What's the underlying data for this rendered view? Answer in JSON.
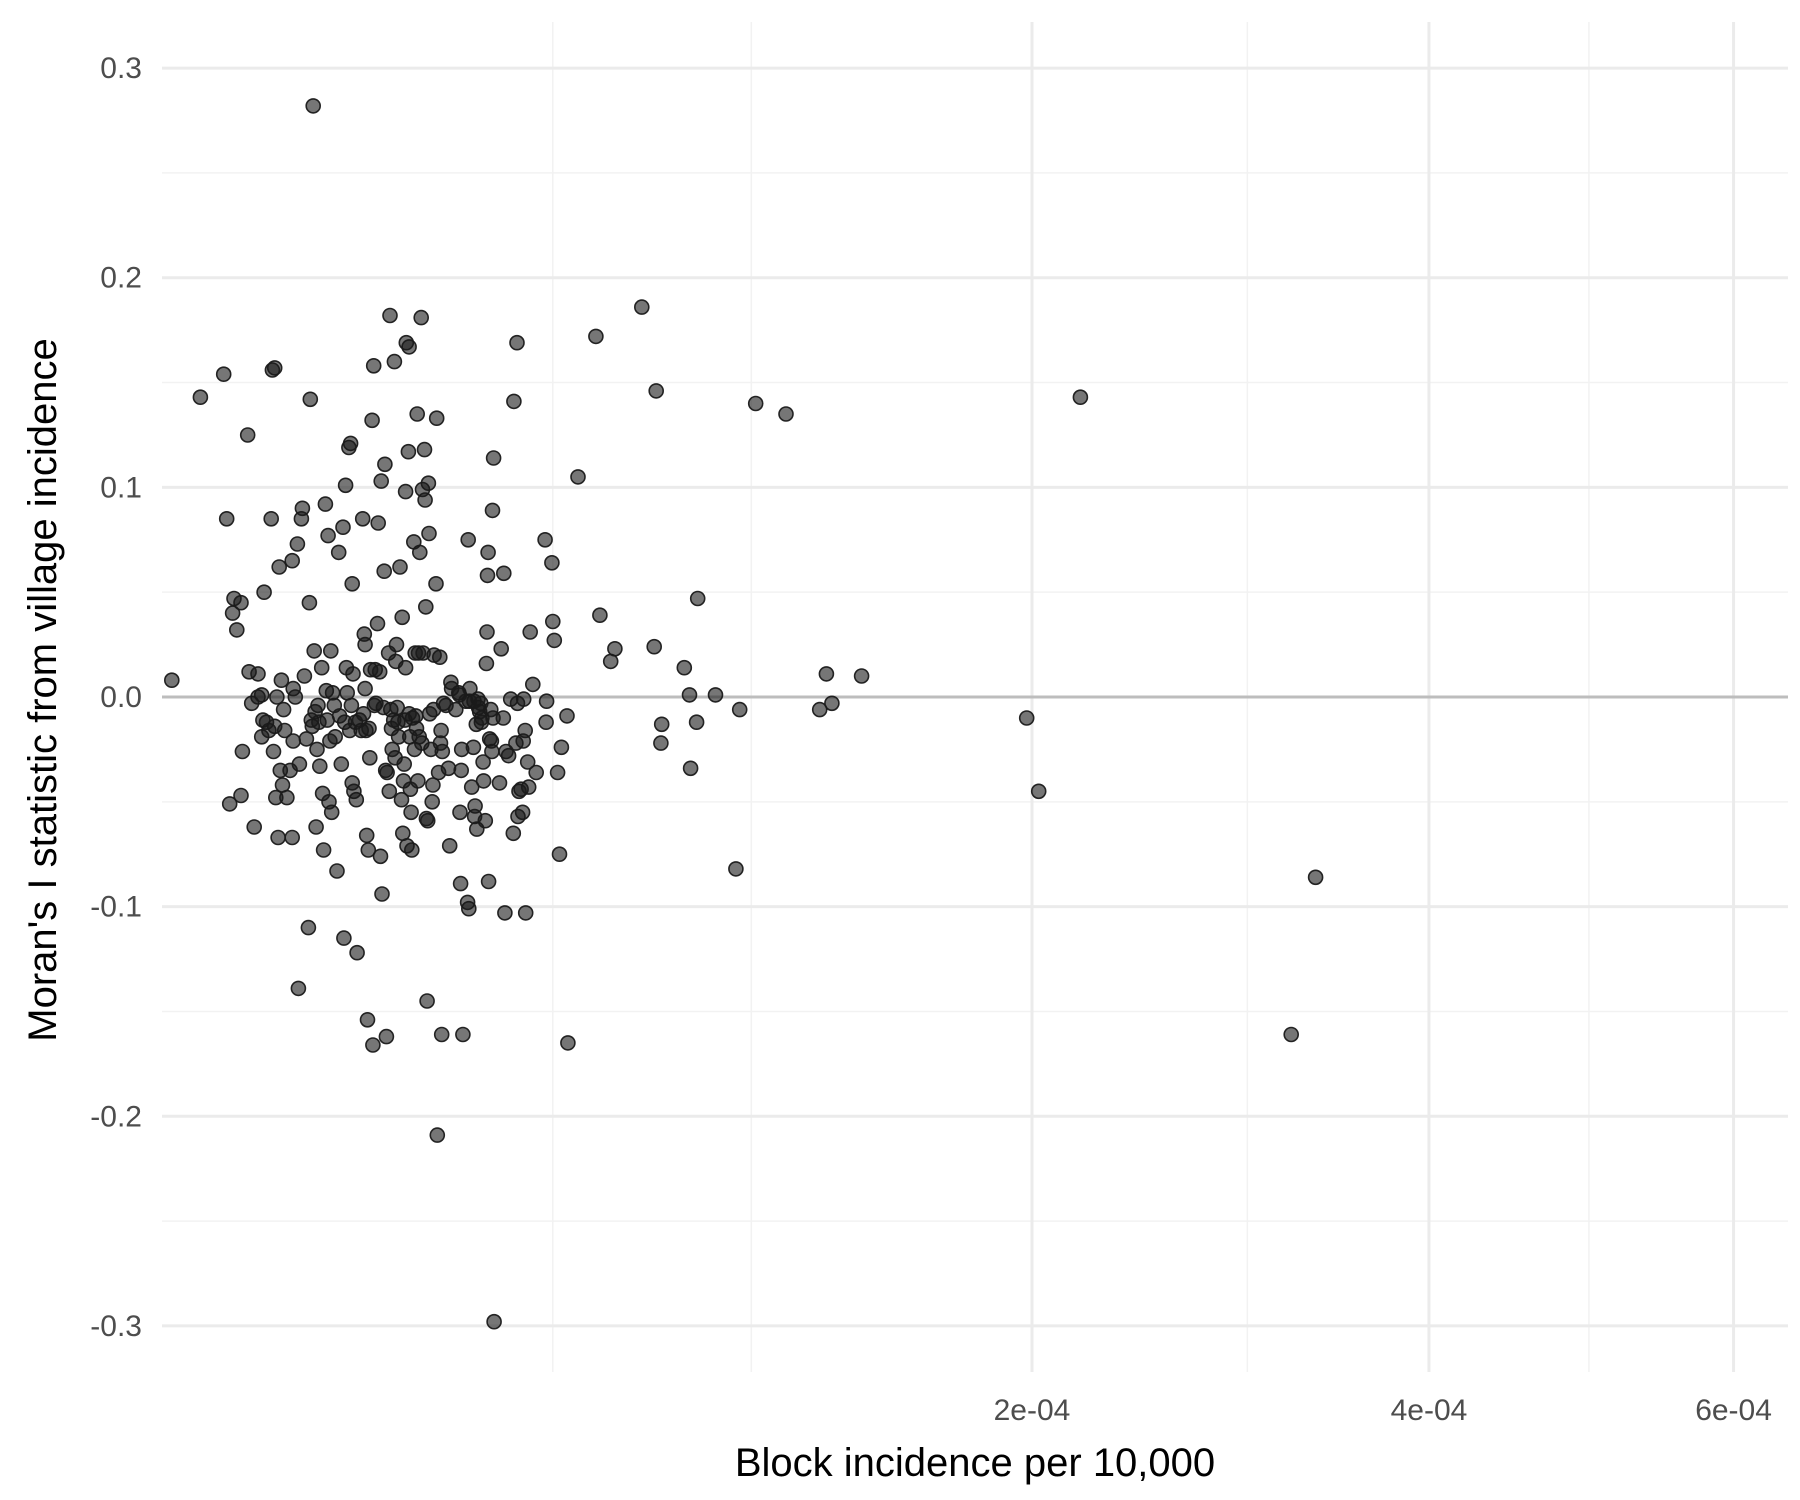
{
  "chart_data": {
    "type": "scatter",
    "title": "",
    "xlabel": "Block incidence per 10,000",
    "ylabel": "Moran's I statistic from village incidence",
    "x_scale": "sqrt",
    "xlim": [
      1.7e-06,
      0.00064
    ],
    "ylim": [
      -0.322,
      0.322
    ],
    "x_major_ticks": [
      0.0002,
      0.0004,
      0.0006
    ],
    "x_tick_labels": [
      "2e-04",
      "4e-04",
      "6e-04"
    ],
    "x_minor_ticks": [
      5e-05,
      0.0001,
      0.0003,
      0.0005
    ],
    "y_major_ticks": [
      -0.3,
      -0.2,
      -0.1,
      0.0,
      0.1,
      0.2,
      0.3
    ],
    "y_tick_labels": [
      "-0.3",
      "-0.2",
      "-0.1",
      "0.0",
      "0.1",
      "0.2",
      "0.3"
    ],
    "y_minor_ticks": [
      -0.25,
      -0.15,
      -0.05,
      0.05,
      0.15,
      0.25
    ],
    "reference_line_y": 0,
    "grid": true,
    "colors": {
      "point": "#1a1a1a",
      "major_grid": "#ebebeb",
      "minor_grid": "#f2f2f2",
      "zero_line": "#bdbdbd"
    },
    "points": [
      {
        "x": 2.1e-06,
        "y": 0.008
      },
      {
        "x": 3.5e-06,
        "y": 0.143
      },
      {
        "x": 4.9e-06,
        "y": 0.154
      },
      {
        "x": 5.1e-06,
        "y": 0.085
      },
      {
        "x": 5.3e-06,
        "y": -0.051
      },
      {
        "x": 5.5e-06,
        "y": 0.04
      },
      {
        "x": 5.6e-06,
        "y": 0.047
      },
      {
        "x": 5.8e-06,
        "y": 0.032
      },
      {
        "x": 6.1e-06,
        "y": 0.045
      },
      {
        "x": 6.1e-06,
        "y": -0.047
      },
      {
        "x": 6.2e-06,
        "y": -0.026
      },
      {
        "x": 6.6e-06,
        "y": 0.125
      },
      {
        "x": 6.7e-06,
        "y": 0.012
      },
      {
        "x": 6.9e-06,
        "y": -0.003
      },
      {
        "x": 7.1e-06,
        "y": -0.062
      },
      {
        "x": 7.4e-06,
        "y": 0.011
      },
      {
        "x": 7.4e-06,
        "y": 0.0
      },
      {
        "x": 7.7e-06,
        "y": 0.001
      },
      {
        "x": 7.7e-06,
        "y": -0.019
      },
      {
        "x": 7.8e-06,
        "y": -0.011
      },
      {
        "x": 7.9e-06,
        "y": 0.05
      },
      {
        "x": 8.1e-06,
        "y": -0.012
      },
      {
        "x": 8.3e-06,
        "y": -0.016
      },
      {
        "x": 8.5e-06,
        "y": 0.085
      },
      {
        "x": 8.6e-06,
        "y": 0.156
      },
      {
        "x": 8.7e-06,
        "y": -0.026
      },
      {
        "x": 8.8e-06,
        "y": -0.014
      },
      {
        "x": 8.8e-06,
        "y": 0.157
      },
      {
        "x": 8.9e-06,
        "y": -0.048
      },
      {
        "x": 9e-06,
        "y": 0.0
      },
      {
        "x": 9.1e-06,
        "y": -0.067
      },
      {
        "x": 9.2e-06,
        "y": 0.062
      },
      {
        "x": 9.3e-06,
        "y": -0.035
      },
      {
        "x": 9.4e-06,
        "y": 0.008
      },
      {
        "x": 9.5e-06,
        "y": -0.042
      },
      {
        "x": 9.6e-06,
        "y": -0.006
      },
      {
        "x": 9.7e-06,
        "y": -0.016
      },
      {
        "x": 9.9e-06,
        "y": -0.048
      },
      {
        "x": 1.02e-05,
        "y": -0.035
      },
      {
        "x": 1.04e-05,
        "y": 0.065
      },
      {
        "x": 1.04e-05,
        "y": -0.067
      },
      {
        "x": 1.05e-05,
        "y": 0.004
      },
      {
        "x": 1.05e-05,
        "y": -0.021
      },
      {
        "x": 1.07e-05,
        "y": 0.0
      },
      {
        "x": 1.09e-05,
        "y": 0.073
      },
      {
        "x": 1.1e-05,
        "y": -0.139
      },
      {
        "x": 1.11e-05,
        "y": -0.032
      },
      {
        "x": 1.13e-05,
        "y": 0.085
      },
      {
        "x": 1.14e-05,
        "y": 0.09
      },
      {
        "x": 1.16e-05,
        "y": 0.01
      },
      {
        "x": 1.18e-05,
        "y": -0.02
      },
      {
        "x": 1.2e-05,
        "y": -0.11
      },
      {
        "x": 1.21e-05,
        "y": 0.045
      },
      {
        "x": 1.22e-05,
        "y": 0.142
      },
      {
        "x": 1.23e-05,
        "y": -0.011
      },
      {
        "x": 1.24e-05,
        "y": -0.014
      },
      {
        "x": 1.25e-05,
        "y": 0.282
      },
      {
        "x": 1.26e-05,
        "y": 0.022
      },
      {
        "x": 1.27e-05,
        "y": -0.007
      },
      {
        "x": 1.28e-05,
        "y": -0.062
      },
      {
        "x": 1.29e-05,
        "y": -0.025
      },
      {
        "x": 1.3e-05,
        "y": -0.004
      },
      {
        "x": 1.31e-05,
        "y": -0.012
      },
      {
        "x": 1.32e-05,
        "y": -0.033
      },
      {
        "x": 1.34e-05,
        "y": 0.014
      },
      {
        "x": 1.35e-05,
        "y": -0.046
      },
      {
        "x": 1.36e-05,
        "y": -0.073
      },
      {
        "x": 1.38e-05,
        "y": 0.092
      },
      {
        "x": 1.39e-05,
        "y": 0.003
      },
      {
        "x": 1.4e-05,
        "y": -0.011
      },
      {
        "x": 1.41e-05,
        "y": 0.077
      },
      {
        "x": 1.42e-05,
        "y": -0.05
      },
      {
        "x": 1.43e-05,
        "y": -0.021
      },
      {
        "x": 1.44e-05,
        "y": 0.022
      },
      {
        "x": 1.45e-05,
        "y": -0.055
      },
      {
        "x": 1.46e-05,
        "y": 0.002
      },
      {
        "x": 1.48e-05,
        "y": -0.004
      },
      {
        "x": 1.49e-05,
        "y": -0.019
      },
      {
        "x": 1.51e-05,
        "y": -0.083
      },
      {
        "x": 1.53e-05,
        "y": 0.069
      },
      {
        "x": 1.54e-05,
        "y": -0.009
      },
      {
        "x": 1.56e-05,
        "y": -0.032
      },
      {
        "x": 1.58e-05,
        "y": 0.081
      },
      {
        "x": 1.59e-05,
        "y": -0.115
      },
      {
        "x": 1.6e-05,
        "y": -0.012
      },
      {
        "x": 1.61e-05,
        "y": 0.101
      },
      {
        "x": 1.62e-05,
        "y": 0.014
      },
      {
        "x": 1.63e-05,
        "y": 0.002
      },
      {
        "x": 1.65e-05,
        "y": 0.119
      },
      {
        "x": 1.66e-05,
        "y": -0.016
      },
      {
        "x": 1.67e-05,
        "y": 0.121
      },
      {
        "x": 1.68e-05,
        "y": -0.004
      },
      {
        "x": 1.69e-05,
        "y": 0.054
      },
      {
        "x": 1.69e-05,
        "y": -0.041
      },
      {
        "x": 1.7e-05,
        "y": 0.011
      },
      {
        "x": 1.71e-05,
        "y": -0.045
      },
      {
        "x": 1.73e-05,
        "y": -0.012
      },
      {
        "x": 1.74e-05,
        "y": -0.049
      },
      {
        "x": 1.75e-05,
        "y": -0.122
      },
      {
        "x": 1.78e-05,
        "y": -0.011
      },
      {
        "x": 1.8e-05,
        "y": -0.016
      },
      {
        "x": 1.82e-05,
        "y": 0.085
      },
      {
        "x": 1.83e-05,
        "y": -0.008
      },
      {
        "x": 1.84e-05,
        "y": 0.03
      },
      {
        "x": 1.85e-05,
        "y": 0.004
      },
      {
        "x": 1.85e-05,
        "y": 0.025
      },
      {
        "x": 1.86e-05,
        "y": -0.016
      },
      {
        "x": 1.87e-05,
        "y": -0.066
      },
      {
        "x": 1.88e-05,
        "y": -0.154
      },
      {
        "x": 1.89e-05,
        "y": -0.073
      },
      {
        "x": 1.9e-05,
        "y": -0.015
      },
      {
        "x": 1.91e-05,
        "y": -0.029
      },
      {
        "x": 1.92e-05,
        "y": 0.013
      },
      {
        "x": 1.94e-05,
        "y": 0.132
      },
      {
        "x": 1.95e-05,
        "y": -0.166
      },
      {
        "x": 1.96e-05,
        "y": 0.158
      },
      {
        "x": 1.97e-05,
        "y": -0.004
      },
      {
        "x": 1.98e-05,
        "y": 0.013
      },
      {
        "x": 1.99e-05,
        "y": -0.003
      },
      {
        "x": 2.01e-05,
        "y": 0.035
      },
      {
        "x": 2.02e-05,
        "y": 0.083
      },
      {
        "x": 2.04e-05,
        "y": 0.012
      },
      {
        "x": 2.05e-05,
        "y": -0.076
      },
      {
        "x": 2.06e-05,
        "y": 0.103
      },
      {
        "x": 2.07e-05,
        "y": -0.094
      },
      {
        "x": 2.09e-05,
        "y": -0.005
      },
      {
        "x": 2.1e-05,
        "y": 0.06
      },
      {
        "x": 2.11e-05,
        "y": 0.111
      },
      {
        "x": 2.12e-05,
        "y": -0.035
      },
      {
        "x": 2.13e-05,
        "y": -0.162
      },
      {
        "x": 2.14e-05,
        "y": -0.036
      },
      {
        "x": 2.16e-05,
        "y": 0.021
      },
      {
        "x": 2.17e-05,
        "y": -0.045
      },
      {
        "x": 2.18e-05,
        "y": 0.182
      },
      {
        "x": 2.19e-05,
        "y": -0.006
      },
      {
        "x": 2.2e-05,
        "y": -0.015
      },
      {
        "x": 2.21e-05,
        "y": -0.025
      },
      {
        "x": 2.23e-05,
        "y": -0.011
      },
      {
        "x": 2.24e-05,
        "y": 0.16
      },
      {
        "x": 2.25e-05,
        "y": -0.029
      },
      {
        "x": 2.26e-05,
        "y": 0.017
      },
      {
        "x": 2.27e-05,
        "y": 0.025
      },
      {
        "x": 2.28e-05,
        "y": -0.005
      },
      {
        "x": 2.29e-05,
        "y": -0.012
      },
      {
        "x": 2.3e-05,
        "y": -0.019
      },
      {
        "x": 2.32e-05,
        "y": 0.062
      },
      {
        "x": 2.34e-05,
        "y": -0.049
      },
      {
        "x": 2.35e-05,
        "y": 0.038
      },
      {
        "x": 2.36e-05,
        "y": -0.065
      },
      {
        "x": 2.37e-05,
        "y": -0.04
      },
      {
        "x": 2.38e-05,
        "y": -0.032
      },
      {
        "x": 2.39e-05,
        "y": -0.011
      },
      {
        "x": 2.4e-05,
        "y": 0.014
      },
      {
        "x": 2.4e-05,
        "y": 0.098
      },
      {
        "x": 2.41e-05,
        "y": 0.169
      },
      {
        "x": 2.42e-05,
        "y": -0.071
      },
      {
        "x": 2.44e-05,
        "y": 0.117
      },
      {
        "x": 2.45e-05,
        "y": -0.008
      },
      {
        "x": 2.45e-05,
        "y": 0.167
      },
      {
        "x": 2.46e-05,
        "y": -0.019
      },
      {
        "x": 2.47e-05,
        "y": -0.044
      },
      {
        "x": 2.48e-05,
        "y": -0.055
      },
      {
        "x": 2.49e-05,
        "y": -0.073
      },
      {
        "x": 2.5e-05,
        "y": -0.01
      },
      {
        "x": 2.52e-05,
        "y": 0.074
      },
      {
        "x": 2.53e-05,
        "y": -0.025
      },
      {
        "x": 2.54e-05,
        "y": 0.021
      },
      {
        "x": 2.55e-05,
        "y": -0.009
      },
      {
        "x": 2.56e-05,
        "y": -0.015
      },
      {
        "x": 2.57e-05,
        "y": 0.135
      },
      {
        "x": 2.58e-05,
        "y": -0.04
      },
      {
        "x": 2.59e-05,
        "y": 0.021
      },
      {
        "x": 2.6e-05,
        "y": -0.019
      },
      {
        "x": 2.61e-05,
        "y": 0.069
      },
      {
        "x": 2.63e-05,
        "y": 0.181
      },
      {
        "x": 2.64e-05,
        "y": -0.022
      },
      {
        "x": 2.65e-05,
        "y": 0.099
      },
      {
        "x": 2.66e-05,
        "y": 0.021
      },
      {
        "x": 2.68e-05,
        "y": 0.118
      },
      {
        "x": 2.69e-05,
        "y": 0.094
      },
      {
        "x": 2.7e-05,
        "y": 0.043
      },
      {
        "x": 2.71e-05,
        "y": -0.058
      },
      {
        "x": 2.72e-05,
        "y": -0.145
      },
      {
        "x": 2.73e-05,
        "y": -0.059
      },
      {
        "x": 2.74e-05,
        "y": 0.102
      },
      {
        "x": 2.75e-05,
        "y": 0.078
      },
      {
        "x": 2.76e-05,
        "y": -0.008
      },
      {
        "x": 2.78e-05,
        "y": -0.025
      },
      {
        "x": 2.8e-05,
        "y": -0.05
      },
      {
        "x": 2.81e-05,
        "y": -0.042
      },
      {
        "x": 2.82e-05,
        "y": -0.006
      },
      {
        "x": 2.83e-05,
        "y": 0.02
      },
      {
        "x": 2.86e-05,
        "y": 0.054
      },
      {
        "x": 2.87e-05,
        "y": 0.133
      },
      {
        "x": 2.88e-05,
        "y": -0.209
      },
      {
        "x": 2.9e-05,
        "y": -0.036
      },
      {
        "x": 2.92e-05,
        "y": 0.019
      },
      {
        "x": 2.93e-05,
        "y": -0.022
      },
      {
        "x": 2.94e-05,
        "y": -0.016
      },
      {
        "x": 2.95e-05,
        "y": -0.161
      },
      {
        "x": 2.96e-05,
        "y": -0.026
      },
      {
        "x": 2.98e-05,
        "y": -0.003
      },
      {
        "x": 3.02e-05,
        "y": -0.004
      },
      {
        "x": 3.06e-05,
        "y": -0.034
      },
      {
        "x": 3.08e-05,
        "y": -0.071
      },
      {
        "x": 3.1e-05,
        "y": 0.007
      },
      {
        "x": 3.11e-05,
        "y": 0.004
      },
      {
        "x": 3.18e-05,
        "y": -0.006
      },
      {
        "x": 3.23e-05,
        "y": 0.002
      },
      {
        "x": 3.24e-05,
        "y": 0.001
      },
      {
        "x": 3.25e-05,
        "y": -0.055
      },
      {
        "x": 3.26e-05,
        "y": -0.089
      },
      {
        "x": 3.27e-05,
        "y": -0.035
      },
      {
        "x": 3.28e-05,
        "y": -0.025
      },
      {
        "x": 3.3e-05,
        "y": -0.161
      },
      {
        "x": 3.35e-05,
        "y": -0.002
      },
      {
        "x": 3.38e-05,
        "y": -0.098
      },
      {
        "x": 3.39e-05,
        "y": 0.075
      },
      {
        "x": 3.4e-05,
        "y": -0.101
      },
      {
        "x": 3.41e-05,
        "y": -0.002
      },
      {
        "x": 3.42e-05,
        "y": 0.004
      },
      {
        "x": 3.45e-05,
        "y": -0.043
      },
      {
        "x": 3.48e-05,
        "y": -0.024
      },
      {
        "x": 3.49e-05,
        "y": -0.002
      },
      {
        "x": 3.5e-05,
        "y": -0.057
      },
      {
        "x": 3.51e-05,
        "y": -0.052
      },
      {
        "x": 3.53e-05,
        "y": -0.013
      },
      {
        "x": 3.54e-05,
        "y": -0.063
      },
      {
        "x": 3.56e-05,
        "y": -0.001
      },
      {
        "x": 3.57e-05,
        "y": -0.005
      },
      {
        "x": 3.59e-05,
        "y": -0.007
      },
      {
        "x": 3.61e-05,
        "y": -0.003
      },
      {
        "x": 3.62e-05,
        "y": -0.012
      },
      {
        "x": 3.63e-05,
        "y": -0.01
      },
      {
        "x": 3.65e-05,
        "y": -0.031
      },
      {
        "x": 3.66e-05,
        "y": -0.04
      },
      {
        "x": 3.69e-05,
        "y": -0.059
      },
      {
        "x": 3.71e-05,
        "y": 0.016
      },
      {
        "x": 3.72e-05,
        "y": 0.031
      },
      {
        "x": 3.73e-05,
        "y": 0.058
      },
      {
        "x": 3.74e-05,
        "y": 0.069
      },
      {
        "x": 3.75e-05,
        "y": -0.088
      },
      {
        "x": 3.77e-05,
        "y": -0.02
      },
      {
        "x": 3.79e-05,
        "y": -0.006
      },
      {
        "x": 3.8e-05,
        "y": -0.021
      },
      {
        "x": 3.81e-05,
        "y": -0.026
      },
      {
        "x": 3.82e-05,
        "y": 0.089
      },
      {
        "x": 3.83e-05,
        "y": -0.01
      },
      {
        "x": 3.84e-05,
        "y": 0.114
      },
      {
        "x": 3.85e-05,
        "y": -0.298
      },
      {
        "x": 3.95e-05,
        "y": -0.041
      },
      {
        "x": 3.98e-05,
        "y": 0.023
      },
      {
        "x": 4.02e-05,
        "y": -0.01
      },
      {
        "x": 4.03e-05,
        "y": 0.059
      },
      {
        "x": 4.05e-05,
        "y": -0.103
      },
      {
        "x": 4.07e-05,
        "y": -0.026
      },
      {
        "x": 4.12e-05,
        "y": -0.028
      },
      {
        "x": 4.16e-05,
        "y": -0.001
      },
      {
        "x": 4.21e-05,
        "y": -0.065
      },
      {
        "x": 4.22e-05,
        "y": 0.141
      },
      {
        "x": 4.26e-05,
        "y": -0.022
      },
      {
        "x": 4.28e-05,
        "y": 0.169
      },
      {
        "x": 4.29e-05,
        "y": -0.003
      },
      {
        "x": 4.3e-05,
        "y": -0.057
      },
      {
        "x": 4.32e-05,
        "y": -0.045
      },
      {
        "x": 4.36e-05,
        "y": -0.044
      },
      {
        "x": 4.39e-05,
        "y": -0.055
      },
      {
        "x": 4.4e-05,
        "y": -0.021
      },
      {
        "x": 4.41e-05,
        "y": -0.001
      },
      {
        "x": 4.44e-05,
        "y": -0.016
      },
      {
        "x": 4.45e-05,
        "y": -0.103
      },
      {
        "x": 4.49e-05,
        "y": -0.031
      },
      {
        "x": 4.51e-05,
        "y": -0.043
      },
      {
        "x": 4.54e-05,
        "y": 0.031
      },
      {
        "x": 4.59e-05,
        "y": 0.006
      },
      {
        "x": 4.66e-05,
        "y": -0.036
      },
      {
        "x": 4.84e-05,
        "y": 0.075
      },
      {
        "x": 4.86e-05,
        "y": -0.012
      },
      {
        "x": 4.87e-05,
        "y": -0.002
      },
      {
        "x": 4.98e-05,
        "y": 0.064
      },
      {
        "x": 5e-05,
        "y": 0.036
      },
      {
        "x": 5.03e-05,
        "y": 0.027
      },
      {
        "x": 5.1e-05,
        "y": -0.036
      },
      {
        "x": 5.14e-05,
        "y": -0.075
      },
      {
        "x": 5.18e-05,
        "y": -0.024
      },
      {
        "x": 5.3e-05,
        "y": -0.009
      },
      {
        "x": 5.32e-05,
        "y": -0.165
      },
      {
        "x": 5.54e-05,
        "y": 0.105
      },
      {
        "x": 5.94e-05,
        "y": 0.172
      },
      {
        "x": 6.03e-05,
        "y": 0.039
      },
      {
        "x": 6.28e-05,
        "y": 0.017
      },
      {
        "x": 6.38e-05,
        "y": 0.023
      },
      {
        "x": 7.03e-05,
        "y": 0.186
      },
      {
        "x": 7.34e-05,
        "y": 0.024
      },
      {
        "x": 7.39e-05,
        "y": 0.146
      },
      {
        "x": 7.51e-05,
        "y": -0.022
      },
      {
        "x": 7.53e-05,
        "y": -0.013
      },
      {
        "x": 8.12e-05,
        "y": 0.014
      },
      {
        "x": 8.26e-05,
        "y": 0.001
      },
      {
        "x": 8.29e-05,
        "y": -0.034
      },
      {
        "x": 8.45e-05,
        "y": -0.012
      },
      {
        "x": 8.48e-05,
        "y": 0.047
      },
      {
        "x": 8.97e-05,
        "y": 0.001
      },
      {
        "x": 9.55e-05,
        "y": -0.082
      },
      {
        "x": 9.66e-05,
        "y": -0.006
      },
      {
        "x": 0.0001013,
        "y": 0.14
      },
      {
        "x": 0.0001105,
        "y": 0.135
      },
      {
        "x": 0.0001212,
        "y": -0.006
      },
      {
        "x": 0.0001234,
        "y": 0.011
      },
      {
        "x": 0.0001252,
        "y": -0.003
      },
      {
        "x": 0.0001352,
        "y": 0.01
      },
      {
        "x": 0.0001978,
        "y": -0.01
      },
      {
        "x": 0.0002028,
        "y": -0.045
      },
      {
        "x": 0.0002207,
        "y": 0.143
      },
      {
        "x": 0.0003228,
        "y": -0.161
      },
      {
        "x": 0.0003359,
        "y": -0.086
      }
    ]
  }
}
